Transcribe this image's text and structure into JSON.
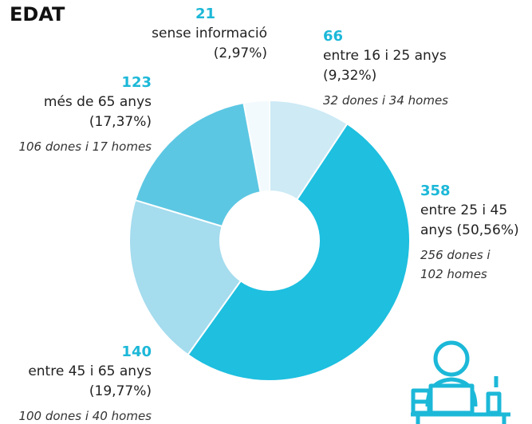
{
  "chart_data": {
    "type": "donut",
    "title": "EDAT",
    "categories": [
      "entre 16 i 25 anys",
      "entre 25 i 45 anys",
      "entre 45 i 65 anys",
      "més de 65 anys",
      "sense informació"
    ],
    "values": [
      66,
      358,
      140,
      123,
      21
    ],
    "percent_labels": [
      "(9,32%)",
      "(50,56%)",
      "(19,77%)",
      "(17,37%)",
      "(2,97%)"
    ],
    "notes": [
      "32 dones i 34 homes",
      "256 dones i 102 homes",
      "100 dones i 40 homes",
      "106 dones i 17 homes",
      null
    ],
    "colors": [
      "#cdeaf5",
      "#1ebfdf",
      "#a5dcee",
      "#5cc7e3",
      "#f2fafd"
    ]
  }
}
